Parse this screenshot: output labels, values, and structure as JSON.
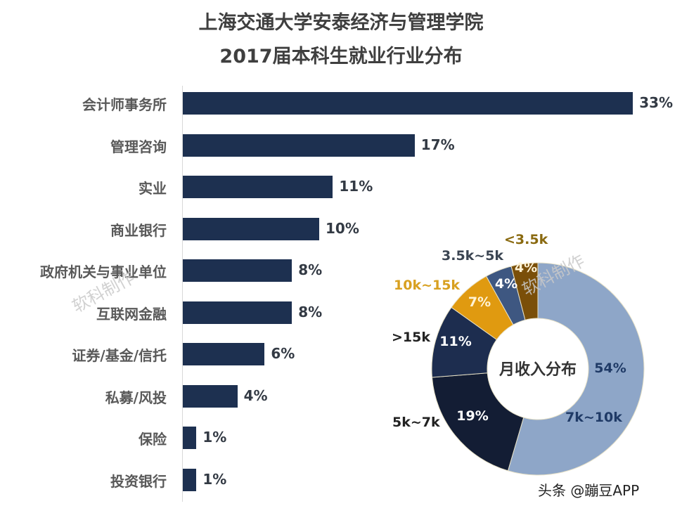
{
  "title": {
    "line1": "上海交通大学安泰经济与管理学院",
    "line2": "2017届本科生就业行业分布"
  },
  "watermark": "软科制作",
  "footer": "头条 @蹦豆APP",
  "colors": {
    "bar": "#1d3050",
    "label": "#595959",
    "value": "#333a44"
  },
  "chart_data": [
    {
      "type": "bar",
      "orientation": "horizontal",
      "title": "上海交通大学安泰经济与管理学院 2017届本科生就业行业分布",
      "categories": [
        "会计师事务所",
        "管理咨询",
        "实业",
        "商业银行",
        "政府机关与事业单位",
        "互联网金融",
        "证券/基金/信托",
        "私募/风投",
        "保险",
        "投资银行"
      ],
      "values": [
        33,
        17,
        11,
        10,
        8,
        8,
        6,
        4,
        1,
        1
      ],
      "value_labels": [
        "33%",
        "17%",
        "11%",
        "10%",
        "8%",
        "8%",
        "6%",
        "4%",
        "1%",
        "1%"
      ],
      "unit": "%",
      "xlabel": "",
      "ylabel": "",
      "grid": false,
      "legend": "none"
    },
    {
      "type": "pie",
      "variant": "donut",
      "title": "月收入分布",
      "categories": [
        "7k~10k",
        "5k~7k",
        ">15k",
        "10k~15k",
        "3.5k~5k",
        "<3.5k"
      ],
      "values": [
        54,
        19,
        11,
        7,
        4,
        4
      ],
      "value_labels": [
        "54%",
        "19%",
        "11%",
        "7%",
        "4%",
        "4%"
      ],
      "colors": [
        "#8ea6c8",
        "#131d34",
        "#1d2d4f",
        "#e09a10",
        "#3e5781",
        "#7a4f09"
      ],
      "label_colors": [
        "#1f3a66",
        "#222222",
        "#222222",
        "#d8a020",
        "#3b4552",
        "#8a6a10"
      ],
      "legend": "none"
    }
  ],
  "bars": [
    {
      "label": "会计师事务所",
      "value": "33%"
    },
    {
      "label": "管理咨询",
      "value": "17%"
    },
    {
      "label": "实业",
      "value": "11%"
    },
    {
      "label": "商业银行",
      "value": "10%"
    },
    {
      "label": "政府机关与事业单位",
      "value": "8%"
    },
    {
      "label": "互联网金融",
      "value": "8%"
    },
    {
      "label": "证券/基金/信托",
      "value": "6%"
    },
    {
      "label": "私募/风投",
      "value": "4%"
    },
    {
      "label": "保险",
      "value": "1%"
    },
    {
      "label": "投资银行",
      "value": "1%"
    }
  ],
  "donut": {
    "center_label": "月收入分布",
    "segments": [
      {
        "range": "7k~10k",
        "pct": "54%"
      },
      {
        "range": "5k~7k",
        "pct": "19%"
      },
      {
        "range": ">15k",
        "pct": "11%"
      },
      {
        "range": "10k~15k",
        "pct": "7%"
      },
      {
        "range": "3.5k~5k",
        "pct": "4%"
      },
      {
        "range": "<3.5k",
        "pct": "4%"
      }
    ]
  }
}
